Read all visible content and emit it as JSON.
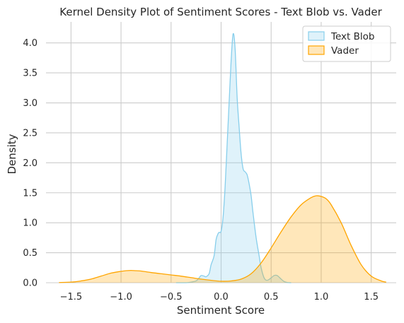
{
  "chart_data": {
    "type": "area",
    "title": "Kernel Density Plot of Sentiment Scores - Text Blob vs. Vader",
    "xlabel": "Sentiment Score",
    "ylabel": "Density",
    "xlim": [
      -1.75,
      1.75
    ],
    "ylim": [
      0,
      4.35
    ],
    "x_ticks": [
      -1.5,
      -1.0,
      -0.5,
      0.0,
      0.5,
      1.0,
      1.5
    ],
    "x_tick_labels": [
      "−1.5",
      "−1.0",
      "−0.5",
      "0.0",
      "0.5",
      "1.0",
      "1.5"
    ],
    "y_ticks": [
      0.0,
      0.5,
      1.0,
      1.5,
      2.0,
      2.5,
      3.0,
      3.5,
      4.0
    ],
    "y_tick_labels": [
      "0.0",
      "0.5",
      "1.0",
      "1.5",
      "2.0",
      "2.5",
      "3.0",
      "3.5",
      "4.0"
    ],
    "grid": true,
    "legend_position": "top-right",
    "series": [
      {
        "name": "Text Blob",
        "line_color": "#87ceeb",
        "fill_color": "#87ceeb",
        "x": [
          -0.45,
          -0.35,
          -0.3,
          -0.25,
          -0.22,
          -0.2,
          -0.17,
          -0.15,
          -0.12,
          -0.1,
          -0.07,
          -0.05,
          -0.03,
          -0.02,
          0.0,
          0.02,
          0.04,
          0.06,
          0.08,
          0.1,
          0.12,
          0.14,
          0.16,
          0.18,
          0.2,
          0.22,
          0.24,
          0.26,
          0.28,
          0.3,
          0.32,
          0.35,
          0.38,
          0.4,
          0.43,
          0.46,
          0.5,
          0.53,
          0.56,
          0.6,
          0.63,
          0.66,
          0.7
        ],
        "y": [
          0.0,
          0.0,
          0.01,
          0.03,
          0.08,
          0.12,
          0.11,
          0.1,
          0.15,
          0.3,
          0.45,
          0.72,
          0.82,
          0.84,
          0.86,
          1.1,
          1.6,
          2.3,
          3.0,
          3.7,
          4.15,
          3.9,
          3.1,
          2.6,
          2.15,
          1.9,
          1.85,
          1.8,
          1.65,
          1.45,
          1.15,
          0.75,
          0.45,
          0.25,
          0.08,
          0.04,
          0.08,
          0.12,
          0.12,
          0.06,
          0.02,
          0.005,
          0.0
        ],
        "values": [
          0.0,
          0.0,
          0.01,
          0.03,
          0.08,
          0.12,
          0.11,
          0.1,
          0.15,
          0.3,
          0.45,
          0.72,
          0.82,
          0.84,
          0.86,
          1.1,
          1.6,
          2.3,
          3.0,
          3.7,
          4.15,
          3.9,
          3.1,
          2.6,
          2.15,
          1.9,
          1.85,
          1.8,
          1.65,
          1.45,
          1.15,
          0.75,
          0.45,
          0.25,
          0.08,
          0.04,
          0.08,
          0.12,
          0.12,
          0.06,
          0.02,
          0.005,
          0.0
        ]
      },
      {
        "name": "Vader",
        "line_color": "#ffa500",
        "fill_color": "#ffa500",
        "x": [
          -1.62,
          -1.5,
          -1.4,
          -1.3,
          -1.2,
          -1.1,
          -1.0,
          -0.95,
          -0.9,
          -0.85,
          -0.8,
          -0.7,
          -0.6,
          -0.5,
          -0.4,
          -0.3,
          -0.2,
          -0.1,
          0.0,
          0.1,
          0.2,
          0.3,
          0.4,
          0.5,
          0.6,
          0.7,
          0.8,
          0.9,
          0.95,
          1.0,
          1.05,
          1.1,
          1.2,
          1.3,
          1.4,
          1.5,
          1.6,
          1.65
        ],
        "y": [
          0.003,
          0.01,
          0.03,
          0.06,
          0.11,
          0.16,
          0.19,
          0.2,
          0.205,
          0.2,
          0.195,
          0.17,
          0.15,
          0.13,
          0.11,
          0.085,
          0.06,
          0.04,
          0.025,
          0.03,
          0.06,
          0.15,
          0.33,
          0.58,
          0.85,
          1.1,
          1.3,
          1.42,
          1.45,
          1.44,
          1.4,
          1.3,
          1.0,
          0.62,
          0.3,
          0.11,
          0.03,
          0.01
        ],
        "values": [
          0.003,
          0.01,
          0.03,
          0.06,
          0.11,
          0.16,
          0.19,
          0.2,
          0.205,
          0.2,
          0.195,
          0.17,
          0.15,
          0.13,
          0.11,
          0.085,
          0.06,
          0.04,
          0.025,
          0.03,
          0.06,
          0.15,
          0.33,
          0.58,
          0.85,
          1.1,
          1.3,
          1.42,
          1.45,
          1.44,
          1.4,
          1.3,
          1.0,
          0.62,
          0.3,
          0.11,
          0.03,
          0.01
        ]
      }
    ]
  }
}
